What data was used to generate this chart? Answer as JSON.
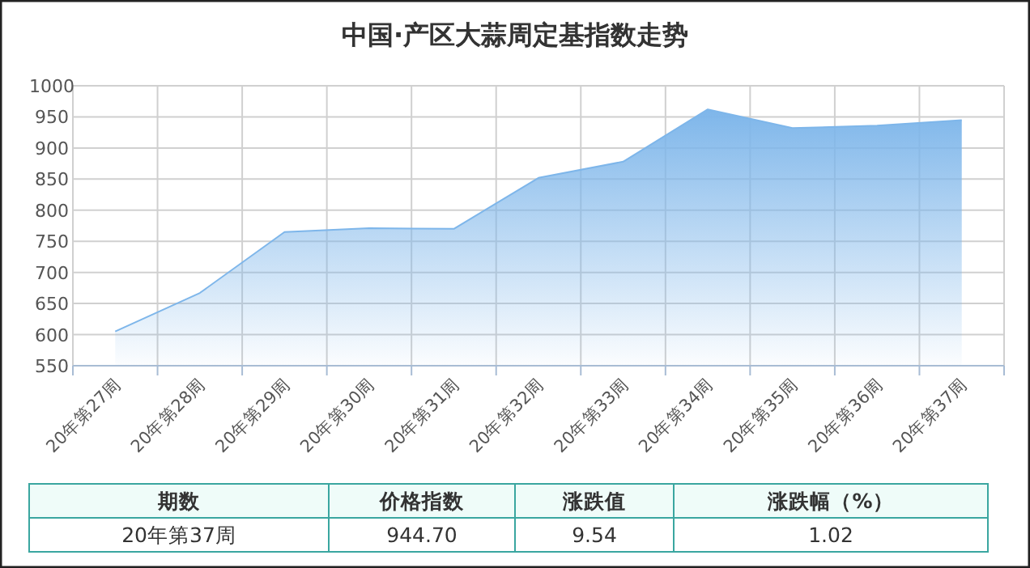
{
  "chart_data": {
    "type": "area",
    "title": "中国·产区大蒜周定基指数走势",
    "categories": [
      "20年第27周",
      "20年第28周",
      "20年第29周",
      "20年第30周",
      "20年第31周",
      "20年第32周",
      "20年第33周",
      "20年第34周",
      "20年第35周",
      "20年第36周",
      "20年第37周"
    ],
    "values": [
      605,
      667,
      765,
      771,
      770,
      852,
      878,
      962,
      932,
      936,
      944.7
    ],
    "color": "#7eb6ea",
    "ylim": [
      550,
      1000
    ],
    "yticks": [
      550,
      600,
      650,
      700,
      750,
      800,
      850,
      900,
      950,
      1000
    ],
    "grid": true,
    "annotations": [
      "期数",
      "价格指数",
      "涨跌值",
      "涨跌幅（%）",
      "20年第37周",
      "944.70",
      "9.54",
      "1.02"
    ]
  }
}
